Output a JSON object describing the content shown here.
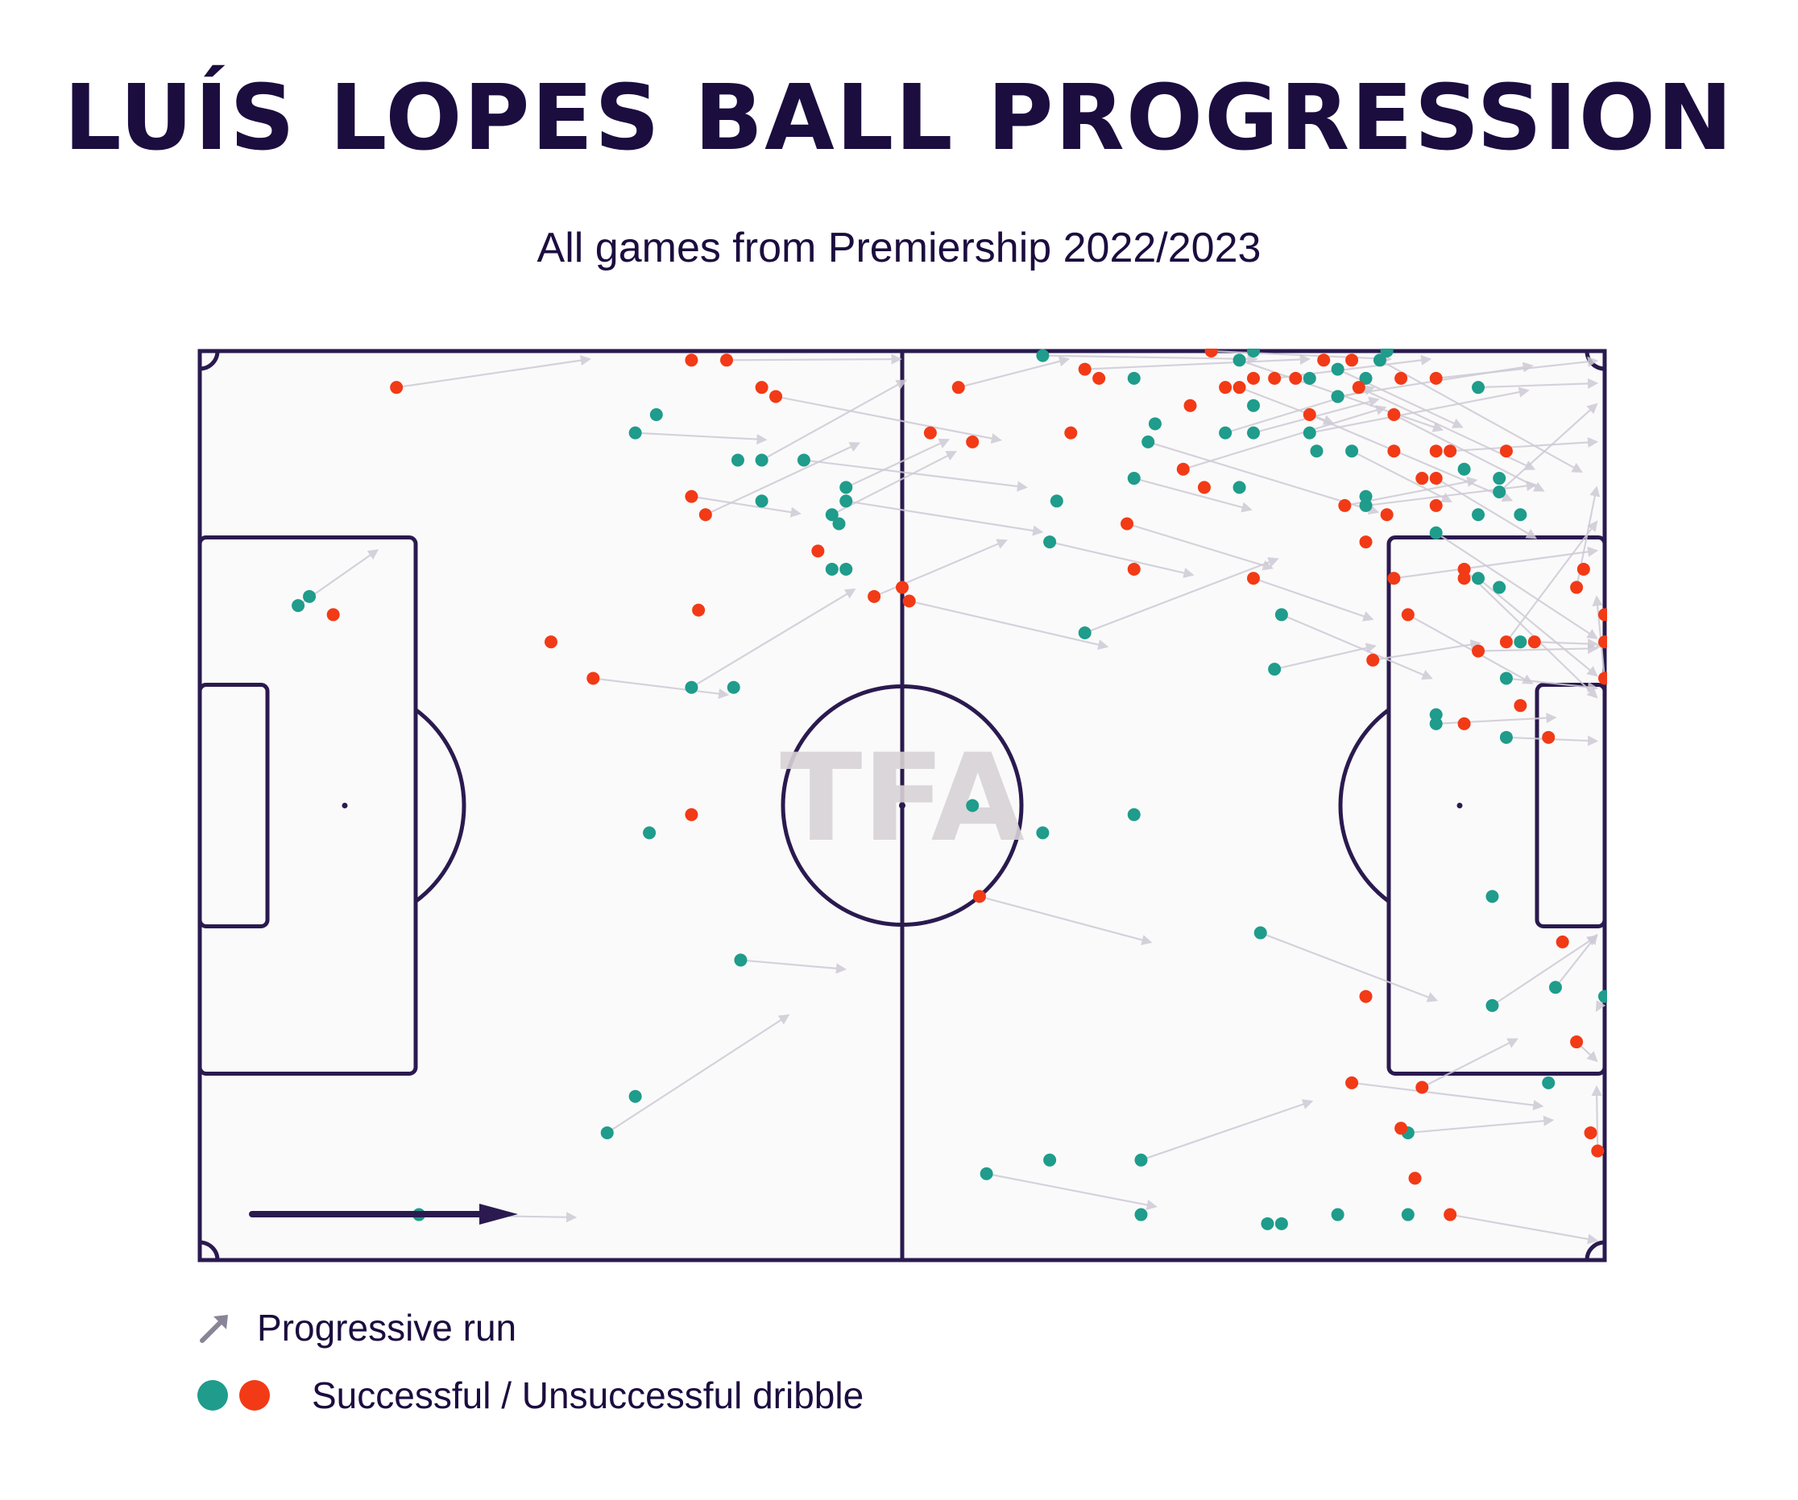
{
  "title": "LUÍS LOPES BALL PROGRESSION",
  "subtitle": "All games from Premiership 2022/2023",
  "watermark": "TFA",
  "colors": {
    "line": "#2a1a4f",
    "pitch": "#fafafa",
    "success": "#1f9c8b",
    "fail": "#f23a16",
    "run": "#cfcbd6",
    "legend_arrow": "#8a8498"
  },
  "legend": {
    "run_label": "Progressive run",
    "dribble_label": "Successful / Unsuccessful dribble",
    "run_icon": "arrow-icon"
  },
  "chart_data": {
    "type": "scatter",
    "pitch": {
      "xlim": [
        0,
        100
      ],
      "ylim": [
        0,
        100
      ],
      "direction": "left-to-right"
    },
    "successful_dribbles": [
      [
        7,
        72
      ],
      [
        7.8,
        73
      ],
      [
        15.6,
        5
      ],
      [
        32,
        47
      ],
      [
        29,
        14
      ],
      [
        31,
        18
      ],
      [
        31,
        91
      ],
      [
        32.5,
        93
      ],
      [
        35,
        63
      ],
      [
        38,
        63
      ],
      [
        38.5,
        33
      ],
      [
        38.3,
        88
      ],
      [
        40,
        88
      ],
      [
        40,
        83.5
      ],
      [
        43,
        88
      ],
      [
        45,
        76
      ],
      [
        45,
        82
      ],
      [
        45.5,
        81
      ],
      [
        46,
        83.5
      ],
      [
        46,
        76
      ],
      [
        46,
        85
      ],
      [
        55,
        50
      ],
      [
        56,
        9.5
      ],
      [
        60,
        47
      ],
      [
        60,
        99.5
      ],
      [
        60.5,
        11
      ],
      [
        60.5,
        79
      ],
      [
        61,
        83.5
      ],
      [
        63,
        69
      ],
      [
        66.5,
        49
      ],
      [
        66.5,
        86
      ],
      [
        66.5,
        97
      ],
      [
        67,
        11
      ],
      [
        67,
        5
      ],
      [
        67.5,
        90
      ],
      [
        68,
        92
      ],
      [
        73,
        91
      ],
      [
        74,
        85
      ],
      [
        74,
        99
      ],
      [
        75,
        100
      ],
      [
        75,
        91
      ],
      [
        75,
        94
      ],
      [
        75.5,
        36
      ],
      [
        76,
        4
      ],
      [
        76.5,
        65
      ],
      [
        77,
        4
      ],
      [
        77,
        71
      ],
      [
        79,
        97
      ],
      [
        79,
        91
      ],
      [
        79.5,
        89
      ],
      [
        81,
        98
      ],
      [
        81,
        5
      ],
      [
        81,
        95
      ],
      [
        81,
        95
      ],
      [
        82,
        89
      ],
      [
        83,
        97
      ],
      [
        83,
        83
      ],
      [
        83,
        84
      ],
      [
        84,
        99
      ],
      [
        84.5,
        100
      ],
      [
        86,
        14
      ],
      [
        86,
        5
      ],
      [
        88,
        80
      ],
      [
        88,
        60
      ],
      [
        88,
        59
      ],
      [
        90,
        87
      ],
      [
        91,
        75
      ],
      [
        91,
        82
      ],
      [
        91,
        96
      ],
      [
        92.5,
        74
      ],
      [
        92.5,
        84.5
      ],
      [
        92.5,
        86
      ],
      [
        93,
        57.5
      ],
      [
        94,
        82
      ],
      [
        92,
        28
      ],
      [
        92,
        40
      ],
      [
        93,
        64
      ],
      [
        94,
        68
      ],
      [
        96.5,
        30
      ],
      [
        96,
        19.5
      ],
      [
        100,
        29
      ]
    ],
    "unsuccessful_dribbles": [
      [
        9.5,
        71
      ],
      [
        14,
        96
      ],
      [
        25,
        68
      ],
      [
        28,
        64
      ],
      [
        35,
        99
      ],
      [
        37.5,
        99
      ],
      [
        40,
        96
      ],
      [
        35,
        84
      ],
      [
        35,
        49
      ],
      [
        36,
        82
      ],
      [
        35.5,
        71.5
      ],
      [
        41,
        95
      ],
      [
        44,
        78
      ],
      [
        48,
        73
      ],
      [
        50,
        74
      ],
      [
        50.5,
        72.5
      ],
      [
        52,
        91
      ],
      [
        54,
        96
      ],
      [
        55,
        90
      ],
      [
        55.5,
        40
      ],
      [
        62,
        91
      ],
      [
        63,
        98
      ],
      [
        64,
        97
      ],
      [
        66,
        81
      ],
      [
        66.5,
        76
      ],
      [
        70,
        87
      ],
      [
        70.5,
        94
      ],
      [
        75,
        75
      ],
      [
        71.5,
        85
      ],
      [
        72,
        100
      ],
      [
        73,
        96
      ],
      [
        74,
        96
      ],
      [
        75,
        97
      ],
      [
        76.5,
        97
      ],
      [
        78,
        97
      ],
      [
        79,
        93
      ],
      [
        80,
        99
      ],
      [
        81.5,
        83
      ],
      [
        82,
        99
      ],
      [
        82.5,
        96
      ],
      [
        83,
        79
      ],
      [
        83.5,
        66
      ],
      [
        84.5,
        82
      ],
      [
        85,
        93
      ],
      [
        85,
        89
      ],
      [
        85,
        75
      ],
      [
        85.5,
        97
      ],
      [
        86,
        71
      ],
      [
        87,
        86
      ],
      [
        88,
        97
      ],
      [
        88,
        89
      ],
      [
        88,
        86
      ],
      [
        88,
        83
      ],
      [
        89,
        89
      ],
      [
        90,
        75
      ],
      [
        90,
        76
      ],
      [
        90,
        59
      ],
      [
        91,
        67
      ],
      [
        93,
        89
      ],
      [
        93,
        68
      ],
      [
        94,
        61
      ],
      [
        95,
        68
      ],
      [
        96,
        57.5
      ],
      [
        98,
        74
      ],
      [
        98.5,
        76
      ],
      [
        100.5,
        68
      ],
      [
        100.5,
        71
      ],
      [
        105,
        64
      ],
      [
        97,
        35
      ],
      [
        98,
        24
      ],
      [
        99,
        14
      ],
      [
        99.5,
        12
      ],
      [
        85.5,
        14.5
      ],
      [
        82,
        19.5
      ],
      [
        83,
        29
      ],
      [
        87,
        19
      ],
      [
        86.5,
        9
      ],
      [
        89,
        5
      ]
    ]
  }
}
